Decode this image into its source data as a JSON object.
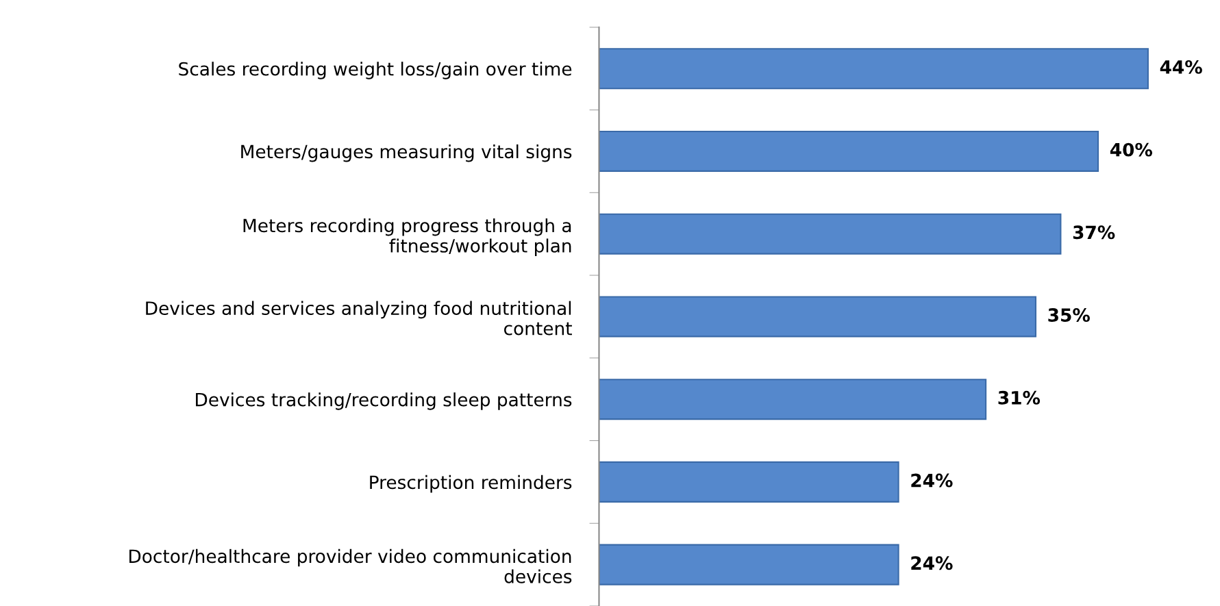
{
  "chart_data": {
    "type": "bar",
    "orientation": "horizontal",
    "categories": [
      "Scales recording weight loss/gain over time",
      "Meters/gauges measuring vital signs",
      "Meters recording progress through a\nfitness/workout plan",
      "Devices and services analyzing food nutritional\ncontent",
      "Devices tracking/recording sleep patterns",
      "Prescription reminders",
      "Doctor/healthcare provider video communication\ndevices"
    ],
    "values": [
      44,
      40,
      37,
      35,
      31,
      24,
      24
    ],
    "value_labels": [
      "44%",
      "40%",
      "37%",
      "35%",
      "31%",
      "24%",
      "24%"
    ],
    "color": "#5588cc",
    "grid": false,
    "legend": false
  }
}
